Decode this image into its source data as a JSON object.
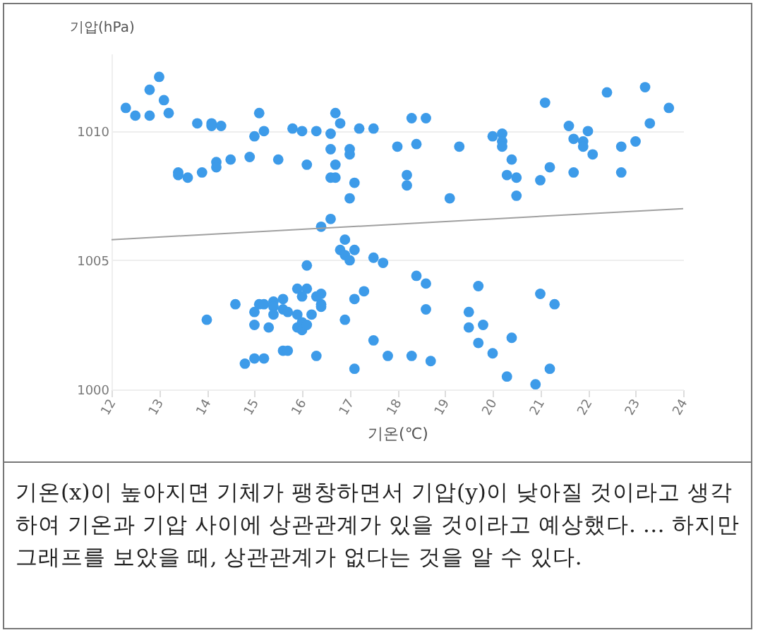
{
  "chart_data": {
    "type": "scatter",
    "xlabel": "기온(℃)",
    "ylabel": "기압(hPa)",
    "xlim": [
      12,
      24
    ],
    "ylim": [
      1000,
      1013
    ],
    "xticks": [
      12,
      13,
      14,
      15,
      16,
      17,
      18,
      19,
      20,
      21,
      22,
      23,
      24
    ],
    "yticks": [
      {
        "value": 1000,
        "label": "1000"
      },
      {
        "value": 1005,
        "label": "1005"
      },
      {
        "value": 1010,
        "label": "1010"
      }
    ],
    "grid": "y",
    "marker": "circle",
    "series": [
      {
        "color": "#3d9be9",
        "x": [
          12.3,
          12.5,
          12.8,
          12.8,
          13.0,
          13.1,
          13.2,
          13.4,
          13.4,
          13.6,
          13.8,
          13.9,
          14.1,
          14.1,
          14.2,
          14.2,
          14.3,
          14.5,
          14.9,
          15.0,
          15.1,
          15.2,
          15.5,
          15.8,
          16.0,
          16.1,
          16.3,
          16.6,
          16.6,
          16.6,
          16.7,
          16.7,
          16.7,
          16.8,
          17.0,
          17.0,
          17.0,
          17.1,
          17.2,
          17.5,
          18.0,
          18.2,
          18.2,
          18.3,
          18.4,
          18.6,
          19.1,
          19.3,
          20.0,
          20.2,
          20.2,
          20.2,
          20.3,
          20.4,
          20.5,
          20.5,
          21.0,
          21.1,
          21.2,
          21.6,
          21.7,
          21.7,
          21.9,
          21.9,
          22.0,
          22.1,
          22.4,
          22.7,
          22.7,
          23.0,
          23.2,
          23.3,
          23.7,
          16.6,
          16.4,
          16.9,
          16.8,
          17.1,
          16.9,
          17.0,
          17.5,
          17.7,
          16.1,
          14.0,
          14.6,
          15.0,
          15.0,
          15.1,
          15.2,
          15.4,
          15.4,
          15.4,
          15.3,
          15.6,
          15.6,
          15.7,
          15.9,
          16.1,
          16.0,
          15.9,
          15.9,
          16.0,
          16.0,
          16.1,
          16.2,
          16.3,
          16.4,
          16.4,
          16.4,
          16.9,
          17.1,
          17.3,
          15.6,
          15.7,
          16.3,
          15.0,
          15.2,
          14.8,
          17.1,
          17.5,
          17.8,
          18.4,
          18.6,
          18.6,
          19.7,
          19.5,
          19.5,
          19.8,
          19.7,
          20.0,
          20.4,
          20.3,
          20.9,
          21.0,
          21.3,
          21.2,
          18.3,
          18.7
        ],
        "values": [
          1010.9,
          1010.6,
          1011.6,
          1010.6,
          1012.1,
          1011.2,
          1010.7,
          1008.4,
          1008.3,
          1008.2,
          1010.3,
          1008.4,
          1010.3,
          1010.2,
          1008.8,
          1008.6,
          1010.2,
          1008.9,
          1009.0,
          1009.8,
          1010.7,
          1010.0,
          1008.9,
          1010.1,
          1010.0,
          1008.7,
          1010.0,
          1009.9,
          1009.3,
          1008.2,
          1010.7,
          1008.7,
          1008.2,
          1010.3,
          1009.3,
          1009.1,
          1007.4,
          1008.0,
          1010.1,
          1010.1,
          1009.4,
          1008.3,
          1007.9,
          1010.5,
          1009.5,
          1010.5,
          1007.4,
          1009.4,
          1009.8,
          1009.9,
          1009.6,
          1009.4,
          1008.3,
          1008.9,
          1008.2,
          1007.5,
          1008.1,
          1011.1,
          1008.6,
          1010.2,
          1009.7,
          1008.4,
          1009.6,
          1009.4,
          1010.0,
          1009.1,
          1011.5,
          1009.4,
          1008.4,
          1009.6,
          1011.7,
          1010.3,
          1010.9,
          1006.6,
          1006.3,
          1005.8,
          1005.4,
          1005.4,
          1005.2,
          1005.0,
          1005.1,
          1004.9,
          1004.8,
          1002.7,
          1003.3,
          1003.0,
          1002.5,
          1003.3,
          1003.3,
          1003.4,
          1003.2,
          1002.9,
          1002.4,
          1003.5,
          1003.1,
          1003.0,
          1003.9,
          1003.9,
          1003.6,
          1002.9,
          1002.4,
          1002.3,
          1002.6,
          1002.5,
          1002.9,
          1003.6,
          1003.7,
          1003.3,
          1003.2,
          1002.7,
          1003.5,
          1003.8,
          1001.5,
          1001.5,
          1001.3,
          1001.2,
          1001.2,
          1001.0,
          1000.8,
          1001.9,
          1001.3,
          1004.4,
          1004.1,
          1003.1,
          1004.0,
          1003.0,
          1002.4,
          1002.5,
          1001.8,
          1001.4,
          1002.0,
          1000.5,
          1000.2,
          1003.7,
          1003.3,
          1000.8,
          1001.3,
          1001.1
        ]
      },
      {
        "type": "line",
        "marker": "none",
        "color": "#a0a0a0",
        "x": [
          12,
          24
        ],
        "values": [
          1005.8,
          1007.0
        ]
      }
    ],
    "annotations": [
      "기온(x)이 높아지면 기체가 팽창하면서 기압(y)이 낮아질 것이라고 생각하여 기온과 기압 사이에 상관관계가 있을 것이라고 예상했다. … 하지만 그래프를 보았을 때, 상관관계가 없다는 것을 알 수 있다."
    ]
  }
}
